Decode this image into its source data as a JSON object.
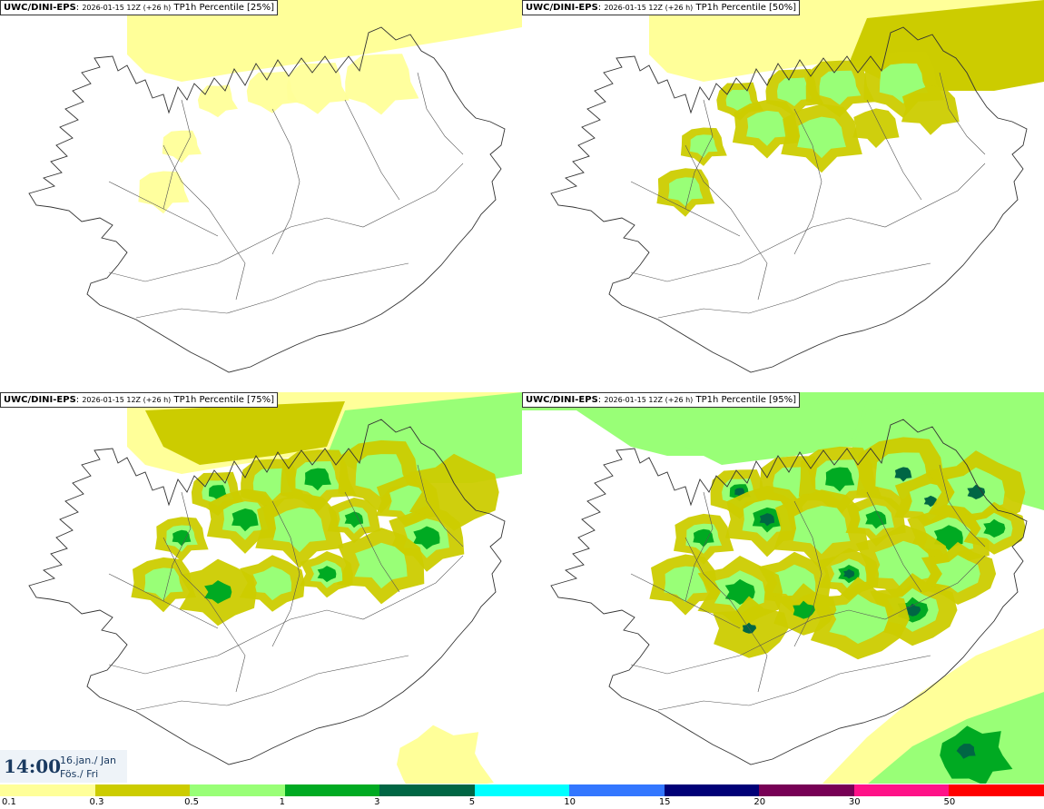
{
  "panels": [
    {
      "model": "UWC/DINI-EPS",
      "run": "2026-01-15 12Z (+26 h)",
      "field": "TP1h Percentile [25%]",
      "level": 1
    },
    {
      "model": "UWC/DINI-EPS",
      "run": "2026-01-15 12Z (+26 h)",
      "field": "TP1h Percentile [50%]",
      "level": 2
    },
    {
      "model": "UWC/DINI-EPS",
      "run": "2026-01-15 12Z (+26 h)",
      "field": "TP1h Percentile [75%]",
      "level": 3
    },
    {
      "model": "UWC/DINI-EPS",
      "run": "2026-01-15 12Z (+26 h)",
      "field": "TP1h Percentile [95%]",
      "level": 4
    }
  ],
  "valid_time": {
    "time": "14:00",
    "date_line1": "16.jan./ Jan",
    "date_line2": "Fös./ Fri"
  },
  "legend": {
    "colors": [
      "#ffff99",
      "#cccc00",
      "#99ff77",
      "#00aa22",
      "#006644",
      "#00ffff",
      "#3377ff",
      "#000077",
      "#770055",
      "#ff1188",
      "#ff0000"
    ],
    "ticks": [
      "0.1",
      "0.3",
      "0.5",
      "1",
      "3",
      "5",
      "10",
      "15",
      "20",
      "30",
      "50"
    ]
  }
}
